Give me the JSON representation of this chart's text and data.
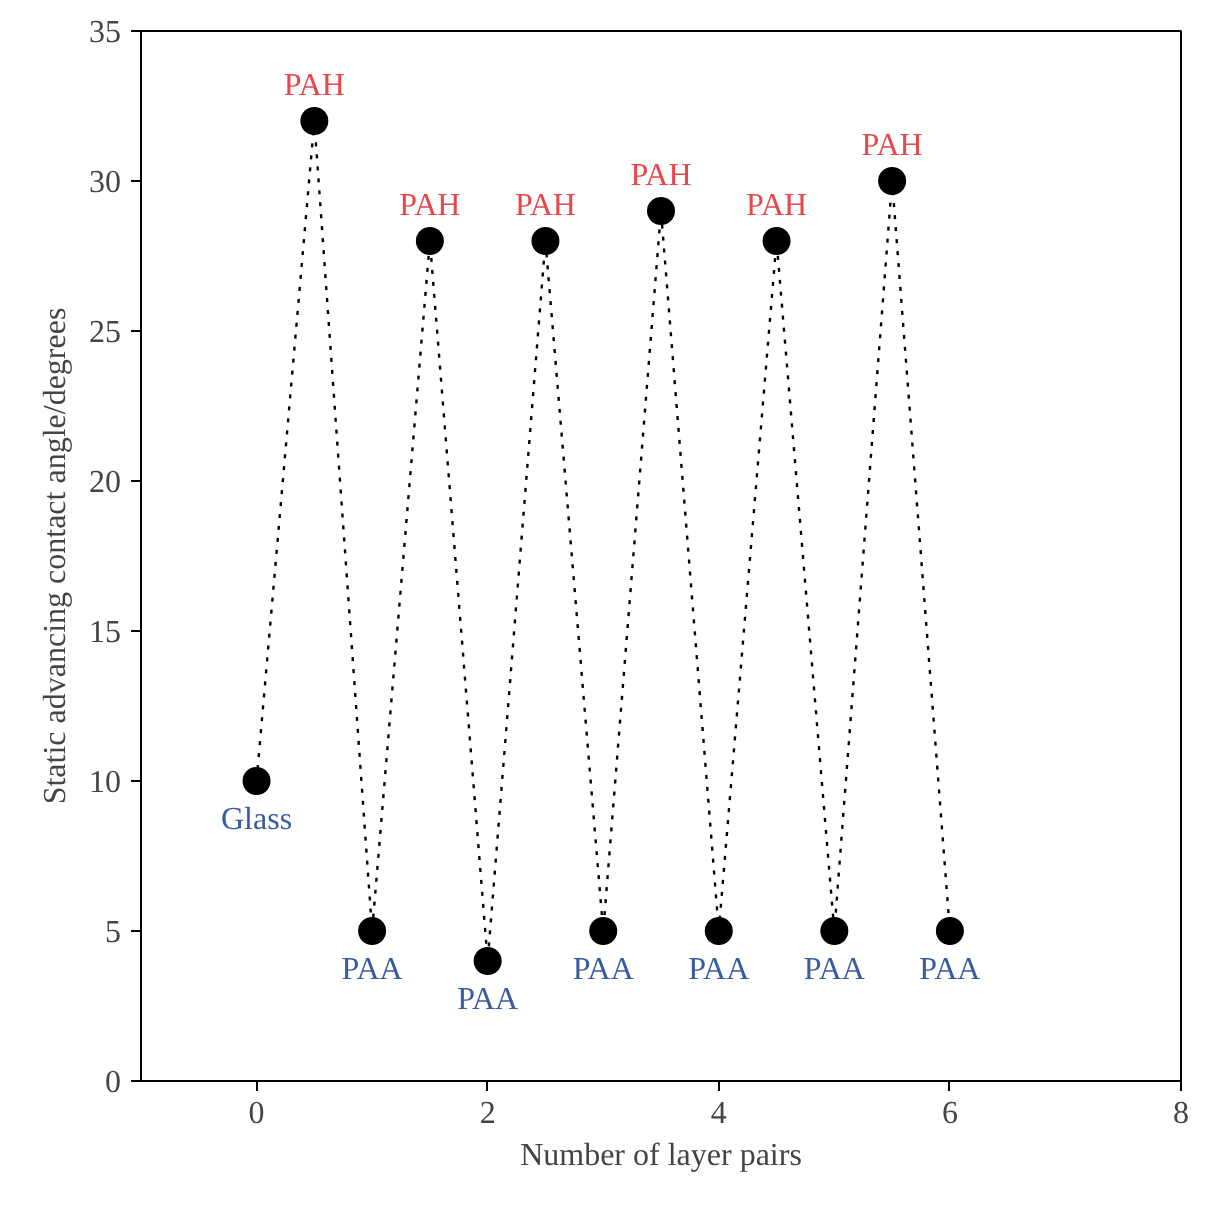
{
  "chart_data": {
    "type": "line",
    "xlabel": "Number of layer pairs",
    "ylabel": "Static advancing contact angle/degrees",
    "x": [
      0,
      0.5,
      1,
      1.5,
      2,
      2.5,
      3,
      3.5,
      4,
      4.5,
      5,
      5.5,
      6
    ],
    "series": [
      {
        "color": "#000000",
        "values": [
          10,
          32,
          5,
          28,
          4,
          28,
          5,
          29,
          5,
          28,
          5,
          30,
          5
        ]
      }
    ],
    "marker": "circle",
    "line_style": "dotted",
    "grid": false,
    "xlim": [
      -1,
      8
    ],
    "xticks": [
      0,
      2,
      4,
      6,
      8
    ],
    "ylim": [
      0,
      35
    ],
    "yticks": [
      0,
      5,
      10,
      15,
      20,
      25,
      30,
      35
    ],
    "annotations": [
      {
        "text": "Glass",
        "x": 0,
        "y": 10
      },
      {
        "text": "PAH",
        "x": 0.5,
        "y": 32
      },
      {
        "text": "PAA",
        "x": 1,
        "y": 5
      },
      {
        "text": "PAH",
        "x": 1.5,
        "y": 28
      },
      {
        "text": "PAA",
        "x": 2,
        "y": 4
      },
      {
        "text": "PAH",
        "x": 2.5,
        "y": 28
      },
      {
        "text": "PAA",
        "x": 3,
        "y": 5
      },
      {
        "text": "PAH",
        "x": 3.5,
        "y": 29
      },
      {
        "text": "PAA",
        "x": 4,
        "y": 5
      },
      {
        "text": "PAH",
        "x": 4.5,
        "y": 28
      },
      {
        "text": "PAA",
        "x": 5,
        "y": 5
      },
      {
        "text": "PAH",
        "x": 5.5,
        "y": 30
      },
      {
        "text": "PAA",
        "x": 6,
        "y": 5
      }
    ]
  }
}
